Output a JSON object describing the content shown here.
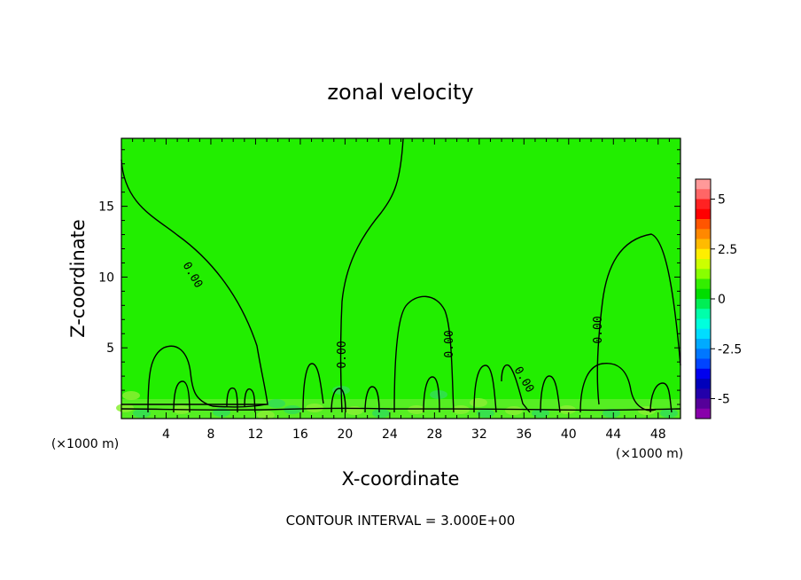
{
  "chart_data": {
    "type": "heatmap",
    "title": "zonal velocity",
    "xlabel": "X-coordinate",
    "ylabel": "Z-coordinate",
    "x_unit_left": "(×1000 m)",
    "x_unit_right": "(×1000 m)",
    "xlim": [
      0,
      50
    ],
    "ylim": [
      0,
      19.8
    ],
    "x_ticks": [
      4,
      8,
      12,
      16,
      20,
      24,
      28,
      32,
      36,
      40,
      44,
      48
    ],
    "y_ticks": [
      5,
      10,
      15
    ],
    "footer": "CONTOUR INTERVAL = 3.000E+00",
    "contour_label": "0.00",
    "field_value_dominant": 0.3,
    "colorbar": {
      "range": [
        -6,
        6
      ],
      "tick_values": [
        5,
        2.5,
        0,
        -2.5,
        -5
      ],
      "tick_labels": [
        "5",
        "2.5",
        "0",
        "-2.5",
        "-5"
      ],
      "colors": [
        "#FF9999",
        "#FF6666",
        "#FF2222",
        "#FF0000",
        "#FF5500",
        "#FF8800",
        "#FFBB00",
        "#FFEE00",
        "#CCFF00",
        "#88FF00",
        "#33EE00",
        "#00DD00",
        "#00EE55",
        "#00FFAA",
        "#00FFDD",
        "#00DDFF",
        "#00AAFF",
        "#0077FF",
        "#0044FF",
        "#0000EE",
        "#0000BB",
        "#2200AA",
        "#550099",
        "#8800AA"
      ]
    },
    "colors": {
      "field_main": "#22EE00",
      "field_low_near_ground": "#33DD55",
      "field_mid": "#55EE22",
      "contour": "#000000"
    }
  }
}
